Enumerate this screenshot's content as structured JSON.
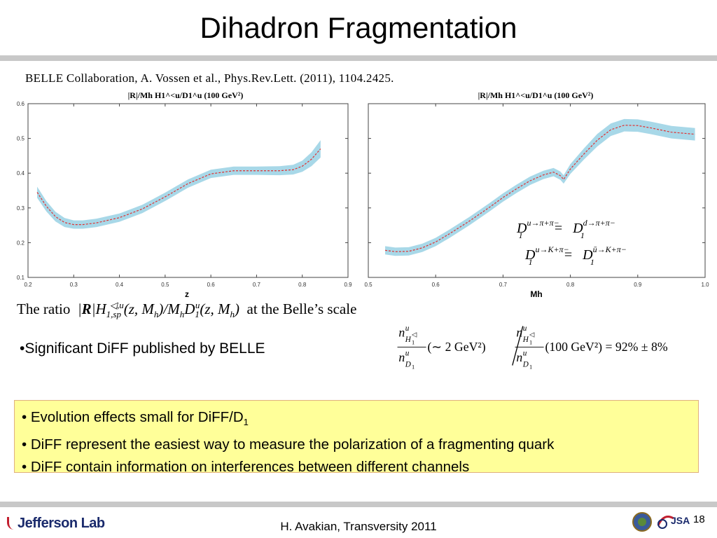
{
  "slide": {
    "title": "Dihadron Fragmentation",
    "citation": "BELLE Collaboration, A. Vossen et al., Phys.Rev.Lett. (2011), 1104.2425.",
    "caption_prefix": "The ratio",
    "caption_suffix": "at the Belle’s scale",
    "caption_math": "|R|H1,sp^{◁,u}(z,Mh)/Mh D1^u(z,Mh)",
    "left_bullet": "•Significant DiFF published by BELLE",
    "ratio_formula": {
      "lhs_num": "n",
      "lhs_num_sup": "u",
      "lhs_num_sub": "H",
      "lhs_den": "n",
      "lhs_den_sup": "u",
      "lhs_den_sub": "D",
      "scale_low": "(∼ 2 GeV²)",
      "scale_high": "(100 GeV²) = 92% ± 8%"
    },
    "summary": {
      "line1_text": "• Evolution effects small for DiFF/D",
      "line1_sub": "1",
      "line2": "• DiFF represent the easiest way to measure the polarization of a fragmenting quark",
      "line3": "• DiFF contain information on interferences between different channels"
    },
    "footer": {
      "author": "H. Avakian, Transversity 2011",
      "page": "18",
      "logo": "Jefferson Lab",
      "jsa_logo": "JSA"
    },
    "colors": {
      "band": "#a8d8e8",
      "curve": "#e03030",
      "box_bg": "#ffff99",
      "box_border": "#e0b080",
      "rule": "#c8c8c8"
    }
  },
  "chart_data": [
    {
      "type": "line",
      "title": "|R|/Mh H1^<u/D1^u (100 GeV²)",
      "xlabel": "z",
      "ylabel": "",
      "xlim": [
        0.2,
        0.9
      ],
      "ylim": [
        0.1,
        0.6
      ],
      "xticks": [
        "0.2",
        "0.3",
        "0.4",
        "0.5",
        "0.6",
        "0.7",
        "0.8",
        "0.9"
      ],
      "yticks": [
        "0.1",
        "0.2",
        "0.3",
        "0.4",
        "0.5",
        "0.6"
      ],
      "grid": false,
      "series": [
        {
          "x": [
            0.22,
            0.24,
            0.26,
            0.28,
            0.3,
            0.32,
            0.35,
            0.4,
            0.45,
            0.5,
            0.55,
            0.6,
            0.65,
            0.7,
            0.75,
            0.78,
            0.8,
            0.82,
            0.84
          ],
          "y": [
            0.345,
            0.305,
            0.275,
            0.258,
            0.252,
            0.252,
            0.257,
            0.272,
            0.297,
            0.332,
            0.37,
            0.398,
            0.407,
            0.407,
            0.407,
            0.41,
            0.42,
            0.44,
            0.47
          ],
          "band": [
            0.016,
            0.015,
            0.014,
            0.013,
            0.012,
            0.012,
            0.012,
            0.012,
            0.012,
            0.012,
            0.012,
            0.012,
            0.012,
            0.012,
            0.013,
            0.014,
            0.016,
            0.02,
            0.025
          ]
        }
      ]
    },
    {
      "type": "line",
      "title": "|R|/Mh H1^<u/D1^u (100 GeV²)",
      "xlabel": "Mh",
      "ylabel": "",
      "xlim": [
        0.5,
        1.0
      ],
      "ylim": [
        0.1,
        0.6
      ],
      "xticks": [
        "0.5",
        "0.6",
        "0.7",
        "0.8",
        "0.9",
        "1.0"
      ],
      "yticks": [],
      "grid": false,
      "annotations": [
        "D1^{u→π+π−} = D1^{d→π+π−}",
        "D1^{u→K+π−} = D1^{ū→K+π−}"
      ],
      "series": [
        {
          "x": [
            0.525,
            0.54,
            0.56,
            0.58,
            0.6,
            0.62,
            0.65,
            0.68,
            0.7,
            0.72,
            0.74,
            0.76,
            0.775,
            0.785,
            0.79,
            0.8,
            0.82,
            0.84,
            0.86,
            0.88,
            0.9,
            0.92,
            0.95,
            0.985
          ],
          "y": [
            0.178,
            0.174,
            0.175,
            0.185,
            0.202,
            0.225,
            0.262,
            0.302,
            0.33,
            0.355,
            0.378,
            0.395,
            0.403,
            0.393,
            0.382,
            0.412,
            0.455,
            0.495,
            0.525,
            0.538,
            0.537,
            0.53,
            0.518,
            0.512
          ],
          "band": [
            0.012,
            0.012,
            0.012,
            0.012,
            0.012,
            0.012,
            0.012,
            0.012,
            0.012,
            0.012,
            0.012,
            0.012,
            0.012,
            0.012,
            0.012,
            0.014,
            0.016,
            0.018,
            0.018,
            0.018,
            0.018,
            0.018,
            0.018,
            0.018
          ]
        }
      ]
    }
  ]
}
